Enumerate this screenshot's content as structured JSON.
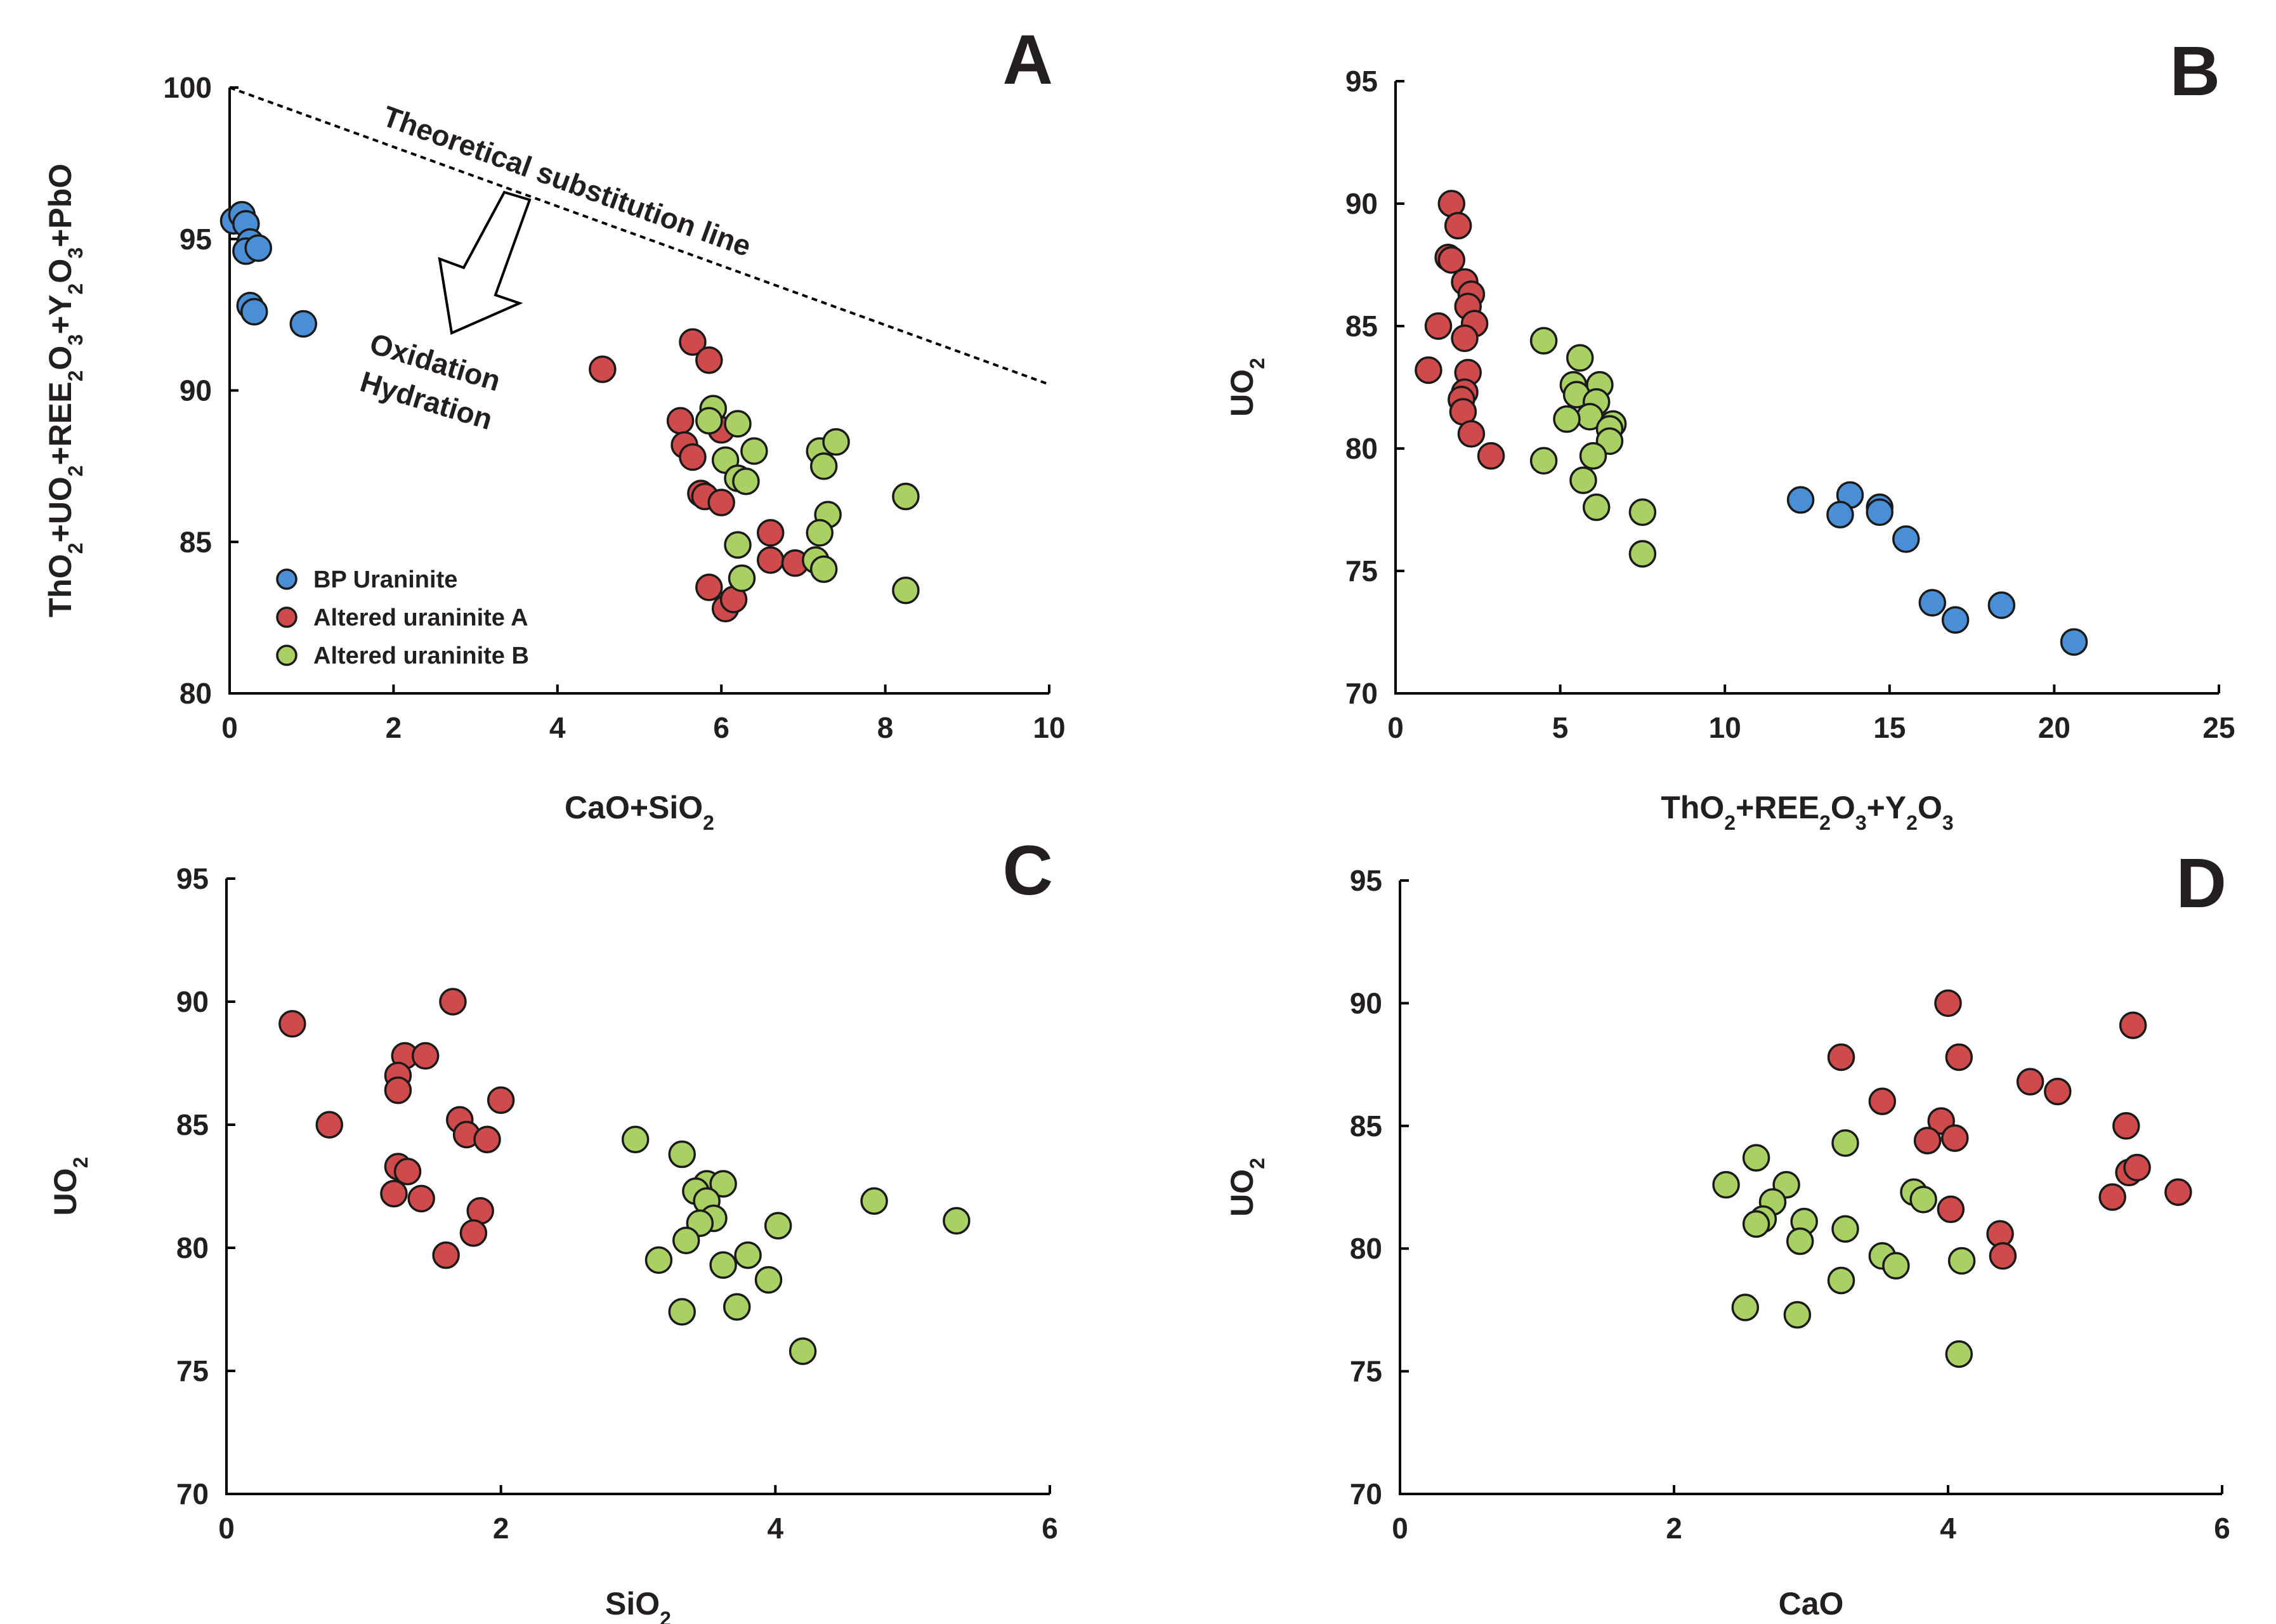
{
  "colors": {
    "bp": "#4a8ed6",
    "alteredA": "#cf4a4a",
    "alteredB": "#a8d063",
    "axis": "#000000"
  },
  "chart_data": [
    {
      "id": "A",
      "type": "scatter",
      "panel_letter": "A",
      "xlabel_parts": [
        [
          "CaO+SiO",
          ""
        ],
        [
          "2",
          "sub"
        ]
      ],
      "ylabel_parts": [
        [
          "ThO",
          ""
        ],
        [
          "2",
          "sub"
        ],
        [
          "+UO",
          ""
        ],
        [
          "2",
          "sub"
        ],
        [
          "+REE",
          ""
        ],
        [
          "2",
          "sub"
        ],
        [
          "O",
          ""
        ],
        [
          "3",
          "sub"
        ],
        [
          "+Y",
          ""
        ],
        [
          "2",
          "sub"
        ],
        [
          "O",
          ""
        ],
        [
          "3",
          "sub"
        ],
        [
          "+PbO",
          ""
        ]
      ],
      "xlim": [
        0,
        10
      ],
      "ylim": [
        80,
        100
      ],
      "xticks": [
        0,
        2,
        4,
        6,
        8,
        10
      ],
      "yticks": [
        80,
        85,
        90,
        95,
        100
      ],
      "legend": {
        "position": "lower-left",
        "entries": [
          {
            "label": "BP Uraninite",
            "series": "bp"
          },
          {
            "label": "Altered uraninite A",
            "series": "alteredA"
          },
          {
            "label": "Altered uraninite B",
            "series": "alteredB"
          }
        ]
      },
      "annotations": {
        "line_label": "Theoretical substitution line",
        "line_from": [
          0,
          100
        ],
        "line_to": [
          10,
          90.2
        ],
        "arrow_label_1": "Oxidation",
        "arrow_label_2": "Hydration"
      },
      "series": [
        {
          "name": "BP Uraninite",
          "key": "bp",
          "points": [
            [
              0.05,
              95.6
            ],
            [
              0.15,
              95.8
            ],
            [
              0.2,
              95.5
            ],
            [
              0.25,
              94.9
            ],
            [
              0.2,
              94.6
            ],
            [
              0.35,
              94.7
            ],
            [
              0.25,
              92.8
            ],
            [
              0.3,
              92.6
            ],
            [
              0.9,
              92.2
            ]
          ]
        },
        {
          "name": "Altered uraninite A",
          "key": "alteredA",
          "points": [
            [
              4.55,
              90.7
            ],
            [
              5.65,
              91.6
            ],
            [
              5.85,
              91.0
            ],
            [
              5.5,
              89.0
            ],
            [
              5.55,
              88.2
            ],
            [
              5.65,
              87.8
            ],
            [
              6.0,
              88.7
            ],
            [
              5.75,
              86.6
            ],
            [
              5.8,
              86.5
            ],
            [
              6.0,
              86.3
            ],
            [
              5.85,
              83.5
            ],
            [
              6.05,
              82.8
            ],
            [
              6.15,
              83.1
            ],
            [
              6.6,
              85.3
            ],
            [
              6.6,
              84.4
            ],
            [
              6.9,
              84.3
            ]
          ]
        },
        {
          "name": "Altered uraninite B",
          "key": "alteredB",
          "points": [
            [
              5.9,
              89.4
            ],
            [
              5.85,
              89.0
            ],
            [
              6.2,
              88.9
            ],
            [
              6.05,
              87.7
            ],
            [
              6.2,
              87.1
            ],
            [
              6.3,
              87.0
            ],
            [
              6.4,
              88.0
            ],
            [
              6.2,
              84.9
            ],
            [
              6.25,
              83.8
            ],
            [
              7.2,
              88.0
            ],
            [
              7.4,
              88.3
            ],
            [
              7.25,
              87.5
            ],
            [
              7.3,
              85.9
            ],
            [
              7.2,
              85.3
            ],
            [
              7.15,
              84.4
            ],
            [
              7.25,
              84.1
            ],
            [
              8.25,
              86.5
            ],
            [
              8.25,
              83.4
            ]
          ]
        }
      ]
    },
    {
      "id": "B",
      "type": "scatter",
      "panel_letter": "B",
      "xlabel_parts": [
        [
          "ThO",
          ""
        ],
        [
          "2",
          "sub"
        ],
        [
          "+REE",
          ""
        ],
        [
          "2",
          "sub"
        ],
        [
          "O",
          ""
        ],
        [
          "3",
          "sub"
        ],
        [
          "+Y",
          ""
        ],
        [
          "2",
          "sub"
        ],
        [
          "O",
          ""
        ],
        [
          "3",
          "sub"
        ]
      ],
      "ylabel_parts": [
        [
          "UO",
          ""
        ],
        [
          "2",
          "sub"
        ]
      ],
      "xlim": [
        0,
        25
      ],
      "ylim": [
        70,
        95
      ],
      "xticks": [
        0,
        5,
        10,
        15,
        20,
        25
      ],
      "yticks": [
        70,
        75,
        80,
        85,
        90,
        95
      ],
      "series": [
        {
          "name": "Altered uraninite A",
          "key": "alteredA",
          "points": [
            [
              1.7,
              90.0
            ],
            [
              1.9,
              89.1
            ],
            [
              1.6,
              87.8
            ],
            [
              1.7,
              87.7
            ],
            [
              2.1,
              86.8
            ],
            [
              2.3,
              86.3
            ],
            [
              2.2,
              85.8
            ],
            [
              1.3,
              85.0
            ],
            [
              2.4,
              85.1
            ],
            [
              2.1,
              84.5
            ],
            [
              1.0,
              83.2
            ],
            [
              2.2,
              83.1
            ],
            [
              2.1,
              82.3
            ],
            [
              2.0,
              82.0
            ],
            [
              2.05,
              81.5
            ],
            [
              2.3,
              80.6
            ],
            [
              2.9,
              79.7
            ]
          ]
        },
        {
          "name": "Altered uraninite B",
          "key": "alteredB",
          "points": [
            [
              4.5,
              84.4
            ],
            [
              5.6,
              83.7
            ],
            [
              5.4,
              82.6
            ],
            [
              6.2,
              82.6
            ],
            [
              5.5,
              82.2
            ],
            [
              6.1,
              81.9
            ],
            [
              5.9,
              81.3
            ],
            [
              5.2,
              81.2
            ],
            [
              6.6,
              81.0
            ],
            [
              6.5,
              80.8
            ],
            [
              6.5,
              80.3
            ],
            [
              6.0,
              79.7
            ],
            [
              4.5,
              79.5
            ],
            [
              5.7,
              78.7
            ],
            [
              6.1,
              77.6
            ],
            [
              7.5,
              77.4
            ],
            [
              7.5,
              75.7
            ]
          ]
        },
        {
          "name": "BP Uraninite",
          "key": "bp",
          "points": [
            [
              12.3,
              77.9
            ],
            [
              13.8,
              78.1
            ],
            [
              13.5,
              77.3
            ],
            [
              14.7,
              77.6
            ],
            [
              14.7,
              77.4
            ],
            [
              15.5,
              76.3
            ],
            [
              16.3,
              73.7
            ],
            [
              17.0,
              73.0
            ],
            [
              18.4,
              73.6
            ],
            [
              20.6,
              72.1
            ]
          ]
        }
      ]
    },
    {
      "id": "C",
      "type": "scatter",
      "panel_letter": "C",
      "xlabel_parts": [
        [
          "SiO",
          ""
        ],
        [
          "2",
          "sub"
        ]
      ],
      "ylabel_parts": [
        [
          "UO",
          ""
        ],
        [
          "2",
          "sub"
        ]
      ],
      "xlim": [
        0,
        6
      ],
      "ylim": [
        70,
        95
      ],
      "xticks": [
        0,
        2,
        4,
        6
      ],
      "yticks": [
        70,
        75,
        80,
        85,
        90,
        95
      ],
      "series": [
        {
          "name": "Altered uraninite A",
          "key": "alteredA",
          "points": [
            [
              0.48,
              89.1
            ],
            [
              1.65,
              90.0
            ],
            [
              1.3,
              87.8
            ],
            [
              1.45,
              87.8
            ],
            [
              1.25,
              87.0
            ],
            [
              1.25,
              86.4
            ],
            [
              2.0,
              86.0
            ],
            [
              0.75,
              85.0
            ],
            [
              1.7,
              85.2
            ],
            [
              1.75,
              84.6
            ],
            [
              1.9,
              84.4
            ],
            [
              1.25,
              83.3
            ],
            [
              1.32,
              83.1
            ],
            [
              1.22,
              82.2
            ],
            [
              1.42,
              82.0
            ],
            [
              1.85,
              81.5
            ],
            [
              1.8,
              80.6
            ],
            [
              1.6,
              79.7
            ]
          ]
        },
        {
          "name": "Altered uraninite B",
          "key": "alteredB",
          "points": [
            [
              2.98,
              84.4
            ],
            [
              3.32,
              83.8
            ],
            [
              3.5,
              82.6
            ],
            [
              3.62,
              82.6
            ],
            [
              3.42,
              82.3
            ],
            [
              3.5,
              81.9
            ],
            [
              4.72,
              81.9
            ],
            [
              3.55,
              81.2
            ],
            [
              3.45,
              81.0
            ],
            [
              4.02,
              80.9
            ],
            [
              5.32,
              81.1
            ],
            [
              3.35,
              80.3
            ],
            [
              3.15,
              79.5
            ],
            [
              3.8,
              79.7
            ],
            [
              3.62,
              79.3
            ],
            [
              3.95,
              78.7
            ],
            [
              3.72,
              77.6
            ],
            [
              3.32,
              77.4
            ],
            [
              4.2,
              75.8
            ]
          ]
        }
      ]
    },
    {
      "id": "D",
      "type": "scatter",
      "panel_letter": "D",
      "xlabel_parts": [
        [
          "CaO",
          ""
        ]
      ],
      "ylabel_parts": [
        [
          "UO",
          ""
        ],
        [
          "2",
          "sub"
        ]
      ],
      "xlim": [
        0,
        6
      ],
      "ylim": [
        70,
        95
      ],
      "xticks": [
        0,
        2,
        4,
        6
      ],
      "yticks": [
        70,
        75,
        80,
        85,
        90,
        95
      ],
      "series": [
        {
          "name": "Altered uraninite A",
          "key": "alteredA",
          "points": [
            [
              4.0,
              90.0
            ],
            [
              5.35,
              89.1
            ],
            [
              3.22,
              87.8
            ],
            [
              4.08,
              87.8
            ],
            [
              4.6,
              86.8
            ],
            [
              4.8,
              86.4
            ],
            [
              3.52,
              86.0
            ],
            [
              3.95,
              85.2
            ],
            [
              5.3,
              85.0
            ],
            [
              3.85,
              84.4
            ],
            [
              4.05,
              84.5
            ],
            [
              5.32,
              83.1
            ],
            [
              5.38,
              83.3
            ],
            [
              5.2,
              82.1
            ],
            [
              5.68,
              82.3
            ],
            [
              4.02,
              81.6
            ],
            [
              4.38,
              80.6
            ],
            [
              4.4,
              79.7
            ]
          ]
        },
        {
          "name": "Altered uraninite B",
          "key": "alteredB",
          "points": [
            [
              2.6,
              83.7
            ],
            [
              3.25,
              84.3
            ],
            [
              2.38,
              82.6
            ],
            [
              2.82,
              82.6
            ],
            [
              3.75,
              82.3
            ],
            [
              2.72,
              81.9
            ],
            [
              3.82,
              82.0
            ],
            [
              2.65,
              81.2
            ],
            [
              2.6,
              81.0
            ],
            [
              2.95,
              81.1
            ],
            [
              3.25,
              80.8
            ],
            [
              2.92,
              80.3
            ],
            [
              3.52,
              79.7
            ],
            [
              3.62,
              79.3
            ],
            [
              4.1,
              79.5
            ],
            [
              3.22,
              78.7
            ],
            [
              2.52,
              77.6
            ],
            [
              2.9,
              77.3
            ],
            [
              4.08,
              75.7
            ]
          ]
        }
      ]
    }
  ]
}
